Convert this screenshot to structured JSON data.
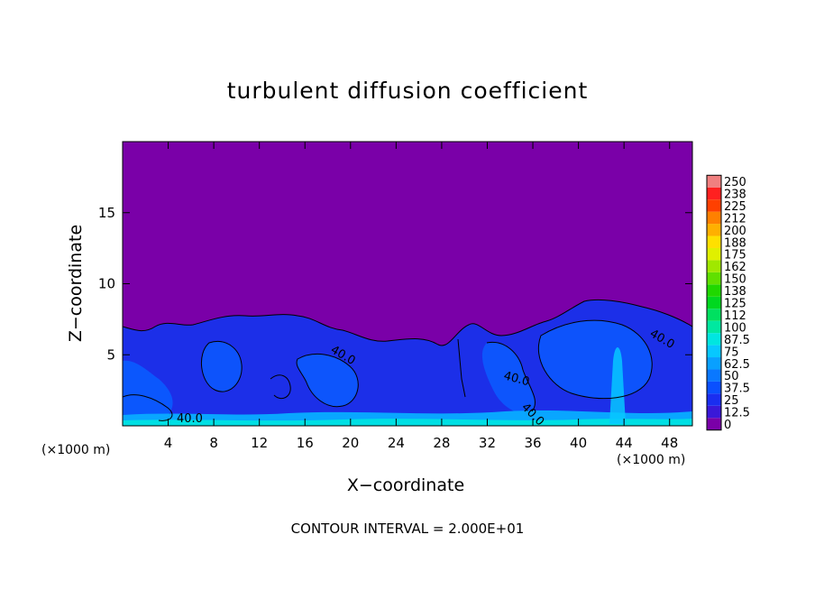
{
  "chart_data": {
    "type": "heatmap",
    "title": "turbulent diffusion coefficient",
    "xlabel": "X−coordinate",
    "ylabel": "Z−coordinate",
    "x_unit": "(×1000 m)",
    "xlim": [
      0,
      50
    ],
    "ylim": [
      0,
      20
    ],
    "x_ticks": [
      4,
      8,
      12,
      16,
      20,
      24,
      28,
      32,
      36,
      40,
      44,
      48
    ],
    "y_ticks": [
      5,
      10,
      15
    ],
    "footer": "CONTOUR INTERVAL = 2.000E+01",
    "contour_labels": [
      "40.0",
      "40.0",
      "40.0",
      "40.0",
      "40.0"
    ],
    "colorbar": {
      "levels": [
        "0",
        "12.5",
        "25",
        "37.5",
        "50",
        "62.5",
        "75",
        "87.5",
        "100",
        "112",
        "125",
        "138",
        "150",
        "162",
        "175",
        "188",
        "200",
        "212",
        "225",
        "238",
        "250"
      ],
      "colors": [
        "#7a00a8",
        "#3a18d8",
        "#1a2ef0",
        "#0a50ff",
        "#0a78ff",
        "#09a0ff",
        "#07c8ff",
        "#00e6e0",
        "#00e8a0",
        "#00e060",
        "#00d820",
        "#20d800",
        "#60e000",
        "#a0e800",
        "#e0f000",
        "#ffe000",
        "#ffb000",
        "#ff8000",
        "#ff4000",
        "#ff2020",
        "#f08080"
      ]
    },
    "grid": false,
    "legend_position": "right"
  }
}
